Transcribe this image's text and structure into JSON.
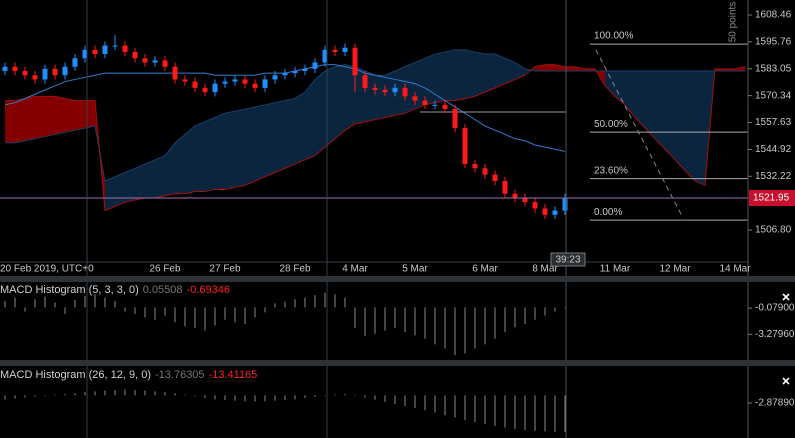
{
  "chart_data": [
    {
      "type": "candlestick",
      "categories": [
        "20 Feb 2019, UTC+0",
        null,
        null,
        null,
        null,
        null,
        null,
        null,
        null,
        null,
        null,
        null,
        null,
        null,
        null,
        null,
        "26 Feb",
        null,
        null,
        null,
        null,
        null,
        "27 Feb",
        null,
        null,
        null,
        null,
        null,
        null,
        "28 Feb",
        null,
        null,
        null,
        null,
        null,
        "4 Mar",
        null,
        null,
        null,
        null,
        null,
        "5 Mar",
        null,
        null,
        null,
        null,
        null,
        null,
        "6 Mar",
        null,
        null,
        null,
        null,
        null,
        "8 Mar",
        null,
        null,
        null,
        null,
        null,
        null,
        "11 Mar",
        null,
        null,
        null,
        null,
        null,
        "12 Mar",
        null,
        null,
        null,
        null,
        null,
        "14 Mar",
        null
      ],
      "open": [
        1582,
        1584,
        1582,
        1580,
        1578,
        1583,
        1580,
        1584,
        1588,
        1592,
        1590,
        1594,
        1594,
        1591,
        1588,
        1586,
        1587,
        1584,
        1578,
        1577,
        1574,
        1572,
        1576,
        1577,
        1578,
        1576,
        1574,
        1578,
        1580,
        1581,
        1582,
        1583,
        1586,
        1592,
        1591,
        1593,
        1580,
        1574,
        1573,
        1572,
        1574,
        1570,
        1568,
        1566,
        1566,
        1564,
        1555,
        1538,
        1536,
        1533,
        1530,
        1524,
        1522,
        1520,
        1517,
        1514,
        1516,
        null,
        null,
        null,
        null,
        null,
        null,
        null,
        null,
        null,
        null,
        null,
        null,
        null,
        null,
        null,
        null,
        null,
        null
      ],
      "high": [
        1586,
        1586,
        1584,
        1582,
        1585,
        1585,
        1586,
        1590,
        1594,
        1594,
        1596,
        1599,
        1596,
        1593,
        1590,
        1589,
        1589,
        1586,
        1580,
        1579,
        1576,
        1578,
        1579,
        1580,
        1580,
        1578,
        1580,
        1582,
        1583,
        1584,
        1585,
        1588,
        1594,
        1594,
        1595,
        1595,
        1582,
        1576,
        1575,
        1576,
        1576,
        1572,
        1570,
        1568,
        1568,
        1566,
        1557,
        1540,
        1538,
        1535,
        1532,
        1526,
        1524,
        1522,
        1519,
        1518,
        1524,
        null,
        null,
        null,
        null,
        null,
        null,
        null,
        null,
        null,
        null,
        null,
        null,
        null,
        null,
        null,
        null,
        null,
        null
      ],
      "low": [
        1580,
        1580,
        1578,
        1576,
        1576,
        1578,
        1578,
        1582,
        1586,
        1588,
        1588,
        1592,
        1589,
        1586,
        1584,
        1584,
        1582,
        1576,
        1575,
        1572,
        1570,
        1570,
        1574,
        1575,
        1574,
        1572,
        1572,
        1576,
        1578,
        1579,
        1580,
        1581,
        1584,
        1589,
        1589,
        1572,
        1572,
        1571,
        1570,
        1570,
        1568,
        1566,
        1564,
        1564,
        1562,
        1553,
        1536,
        1534,
        1531,
        1528,
        1522,
        1520,
        1518,
        1515,
        1512,
        1512,
        1514,
        null,
        null,
        null,
        null,
        null,
        null,
        null,
        null,
        null,
        null,
        null,
        null,
        null,
        null,
        null,
        null,
        null,
        null
      ],
      "close": [
        1584,
        1582,
        1580,
        1578,
        1583,
        1580,
        1584,
        1588,
        1592,
        1590,
        1594,
        1594,
        1591,
        1588,
        1586,
        1587,
        1584,
        1578,
        1577,
        1574,
        1572,
        1576,
        1577,
        1578,
        1576,
        1574,
        1578,
        1580,
        1581,
        1582,
        1583,
        1586,
        1592,
        1591,
        1593,
        1580,
        1574,
        1573,
        1572,
        1574,
        1570,
        1568,
        1566,
        1566,
        1564,
        1555,
        1538,
        1536,
        1533,
        1530,
        1524,
        1522,
        1520,
        1517,
        1514,
        1516,
        1521.95,
        null,
        null,
        null,
        null,
        null,
        null,
        null,
        null,
        null,
        null,
        null,
        null,
        null,
        null,
        null,
        null,
        null,
        null
      ],
      "up_color": "#1e90ff",
      "down_color": "#ff1a1a",
      "moving_line": [
        1566,
        1567,
        1569,
        1571,
        1573,
        1575,
        1577,
        1578,
        1579,
        1580,
        1581,
        1581,
        1581,
        1581,
        1581,
        1581,
        1581,
        1581,
        1581,
        1581,
        1581,
        1580,
        1580,
        1580,
        1580,
        1580,
        1581,
        1581,
        1581,
        1582,
        1583,
        1584,
        1585,
        1585,
        1584,
        1583,
        1581,
        1580,
        1579,
        1578,
        1577,
        1576,
        1574,
        1571,
        1568,
        1565,
        1562,
        1559,
        1556,
        1554,
        1552,
        1550,
        1549,
        1547,
        1546,
        1545,
        1544,
        null,
        null,
        null,
        null,
        null,
        null,
        null,
        null,
        null,
        null,
        null,
        null,
        null,
        null,
        null,
        null,
        null,
        null
      ],
      "moving_line_color": "#2b7fd0",
      "span_a": [
        1548,
        1548,
        1549,
        1550,
        1551,
        1552,
        1553,
        1554,
        1555,
        1556,
        1530,
        1532,
        1534,
        1536,
        1538,
        1540,
        1542,
        1548,
        1552,
        1556,
        1558,
        1560,
        1562,
        1563,
        1564,
        1565,
        1566,
        1567,
        1568,
        1569,
        1572,
        1578,
        1582,
        1584,
        1585,
        1584,
        1582,
        1580,
        1580,
        1582,
        1584,
        1586,
        1588,
        1590,
        1591,
        1592,
        1592,
        1591,
        1590,
        1590,
        1588,
        1586,
        1583,
        1582,
        1582,
        1582,
        1582,
        1582,
        1582,
        1582,
        1582,
        1582,
        1582,
        1582,
        1582,
        1582,
        1582,
        1582,
        1582,
        1582,
        1582,
        1582,
        1582,
        1582,
        1582
      ],
      "span_b": [
        1568,
        1568,
        1569,
        1570,
        1570,
        1570,
        1569,
        1568,
        1568,
        1568,
        1516,
        1518,
        1520,
        1521,
        1522,
        1522,
        1523,
        1524,
        1524,
        1525,
        1525,
        1526,
        1526,
        1527,
        1528,
        1530,
        1532,
        1534,
        1536,
        1538,
        1540,
        1542,
        1546,
        1550,
        1554,
        1557,
        1558,
        1559,
        1560,
        1561,
        1562,
        1564,
        1566,
        1567,
        1568,
        1568,
        1569,
        1570,
        1572,
        1574,
        1576,
        1578,
        1580,
        1584,
        1585,
        1585,
        1584,
        1584,
        1583,
        1583,
        1575,
        1570,
        1566,
        1560,
        1555,
        1550,
        1545,
        1540,
        1535,
        1530,
        1528,
        1583,
        1583,
        1583,
        1584
      ],
      "cloud_up_color": "#0c2742",
      "cloud_down_color": "#8b0000",
      "ylim": [
        1491.7,
        1615.55
      ],
      "yticks": [
        1608.46,
        1595.76,
        1583.05,
        1570.34,
        1557.63,
        1544.92,
        1532.22,
        {
          "value": 1506.8,
          "label": "1506.80"
        }
      ],
      "last_price": 1521.95,
      "last_price_color": "#c8102e",
      "countdown": "39:23",
      "scale_label": "50 points",
      "horizontal_line": 1562.6,
      "fibonacci": [
        {
          "level": "100.00%",
          "price": 1594.7
        },
        {
          "level": "50.00%",
          "price": 1553.1
        },
        {
          "level": "23.60%",
          "price": 1531.1
        },
        {
          "level": "0.00%",
          "price": 1511.5
        }
      ]
    },
    {
      "type": "histogram",
      "title": "MACD Histogram (5, 3, 3, 0)",
      "signal": -0.69346,
      "values": [
        0.8,
        1.2,
        -0.5,
        1.0,
        1.3,
        0.6,
        -0.8,
        0.9,
        1.4,
        1.6,
        1.2,
        0.8,
        -0.5,
        -0.8,
        -1.2,
        -1.5,
        -1.0,
        -1.8,
        -2.3,
        -2.5,
        -2.8,
        -2.2,
        -1.5,
        -1.8,
        -2.0,
        -1.2,
        -0.6,
        0.5,
        0.7,
        1.0,
        1.2,
        1.5,
        1.8,
        1.6,
        1.2,
        -2.5,
        -3.5,
        -3.2,
        -2.8,
        -2.5,
        -3.0,
        -3.4,
        -3.8,
        -4.5,
        -5.0,
        -5.8,
        -5.6,
        -5.0,
        -4.5,
        -3.8,
        -3.0,
        -2.4,
        -2.0,
        -1.5,
        -1.0,
        -0.5,
        0.05508
      ],
      "color": "#8a8a8a",
      "ylim": [
        -6.4,
        3.1
      ],
      "yticks": [
        {
          "value": -0.079,
          "label": "-0.07900"
        },
        {
          "value": -3.2796,
          "label": "-3.27960"
        }
      ]
    },
    {
      "type": "histogram",
      "title": "MACD Histogram (26, 12, 9, 0)",
      "signal": -13.41165,
      "values": [
        -1.5,
        -1.2,
        -0.8,
        -0.5,
        -0.3,
        0.2,
        0.5,
        0.8,
        1.2,
        1.5,
        1.8,
        2.0,
        2.2,
        2.0,
        1.8,
        1.5,
        1.2,
        0.8,
        0.2,
        -0.4,
        -1.0,
        -1.5,
        -1.8,
        -2.0,
        -2.2,
        -2.3,
        -2.2,
        -2.0,
        -1.8,
        -1.5,
        -1.0,
        -0.6,
        -0.2,
        0.3,
        0.5,
        0.2,
        -0.8,
        -1.6,
        -2.4,
        -3.2,
        -4.0,
        -4.8,
        -5.6,
        -6.5,
        -7.4,
        -8.3,
        -9.2,
        -10.0,
        -10.8,
        -11.5,
        -12.1,
        -12.6,
        -13.0,
        -13.3,
        -13.5,
        -13.7,
        -13.76305
      ],
      "color": "#8a8a8a",
      "ylim": [
        -16,
        11
      ],
      "yticks": [
        {
          "value": -2.8789,
          "label": "-2.87890"
        }
      ]
    }
  ]
}
